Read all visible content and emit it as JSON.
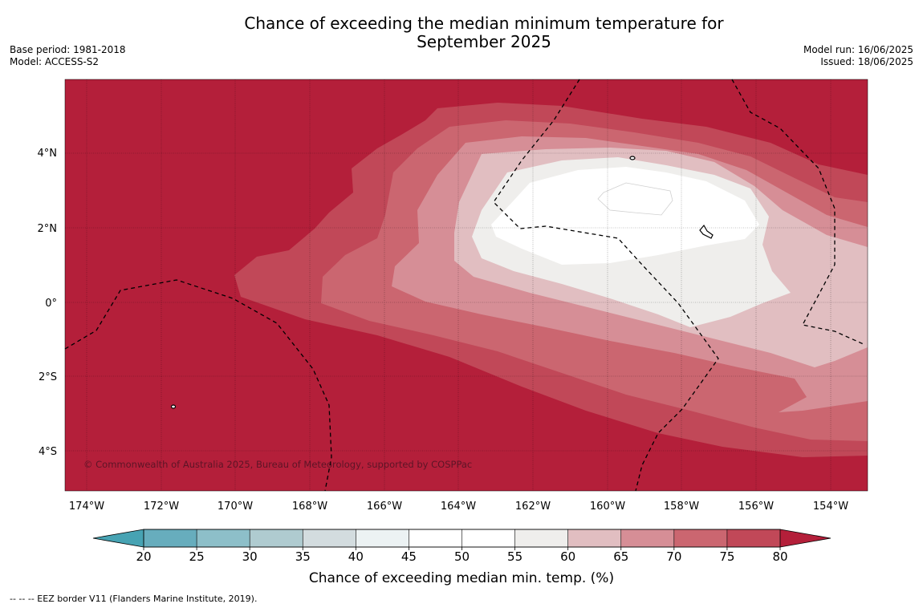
{
  "title": {
    "line1": "Chance of exceeding the median minimum temperature for",
    "line2": "September 2025"
  },
  "meta_left": {
    "base_period": "Base period: 1981-2018",
    "model": "Model: ACCESS-S2"
  },
  "meta_right": {
    "model_run": "Model run: 16/06/2025",
    "issued": "Issued: 18/06/2025"
  },
  "map": {
    "lon_labels": [
      "174°W",
      "172°W",
      "170°W",
      "168°W",
      "166°W",
      "164°W",
      "162°W",
      "160°W",
      "158°W",
      "156°W",
      "154°W"
    ],
    "lat_labels": [
      "4°N",
      "2°N",
      "0°",
      "2°S",
      "4°S"
    ],
    "copyright": "© Commonwealth of Australia 2025, Bureau of Meteorology, supported by COSPPac"
  },
  "colorbar": {
    "ticks": [
      "20",
      "25",
      "30",
      "35",
      "40",
      "45",
      "50",
      "55",
      "60",
      "65",
      "70",
      "75",
      "80"
    ],
    "label": "Chance of exceeding median min. temp. (%)",
    "colors": [
      "#67adbd",
      "#8dbfc9",
      "#afcbd0",
      "#d3dcdf",
      "#ecf2f3",
      "#ffffff",
      "#ffffff",
      "#efeeec",
      "#e1bec1",
      "#d68e96",
      "#cb6670",
      "#c14858"
    ],
    "under_color": "#47a3b3",
    "over_color": "#b41f3a"
  },
  "footnote": "--  --  -- EEZ border V11 (Flanders Marine Institute, 2019)."
}
